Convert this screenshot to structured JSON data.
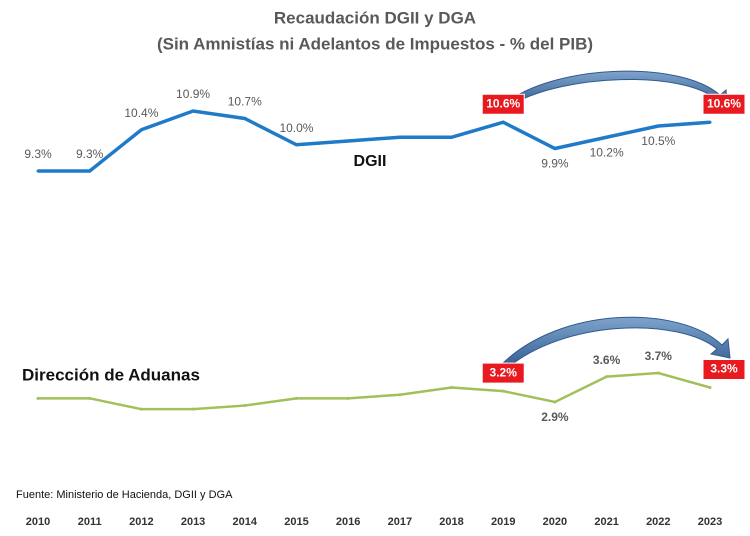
{
  "title": "Recaudación DGII y DGA",
  "subtitle": "(Sin Amnistías ni Adelantos de Impuestos - % del PIB)",
  "source": "Fuente: Ministerio de Hacienda, DGII y DGA",
  "chart_data": [
    {
      "type": "line",
      "title": "DGII",
      "categories": [
        "2010",
        "2011",
        "2012",
        "2013",
        "2014",
        "2015",
        "2016",
        "2017",
        "2018",
        "2019",
        "2020",
        "2021",
        "2022",
        "2023"
      ],
      "values": [
        9.3,
        9.3,
        10.4,
        10.9,
        10.7,
        10.0,
        10.1,
        10.2,
        10.2,
        10.6,
        9.9,
        10.2,
        10.5,
        10.6
      ],
      "value_labels": [
        "9.3%",
        "9.3%",
        "10.4%",
        "10.9%",
        "10.7%",
        "10.0%",
        null,
        null,
        null,
        "10.6%",
        "9.9%",
        "10.2%",
        "10.5%",
        "10.6%"
      ],
      "color": "#1f7bc8",
      "ylim": [
        9,
        11
      ]
    },
    {
      "type": "line",
      "title": "Dirección de Aduanas",
      "values": [
        3.0,
        3.0,
        2.7,
        2.7,
        2.8,
        3.0,
        3.0,
        3.1,
        3.3,
        3.2,
        2.9,
        3.6,
        3.7,
        3.3
      ],
      "value_labels": [
        null,
        null,
        null,
        null,
        null,
        null,
        null,
        null,
        null,
        "3.2%",
        "2.9%",
        "3.6%",
        "3.7%",
        "3.3%"
      ],
      "color": "#a3bf5a",
      "ylim": [
        2.5,
        4.0
      ]
    }
  ]
}
